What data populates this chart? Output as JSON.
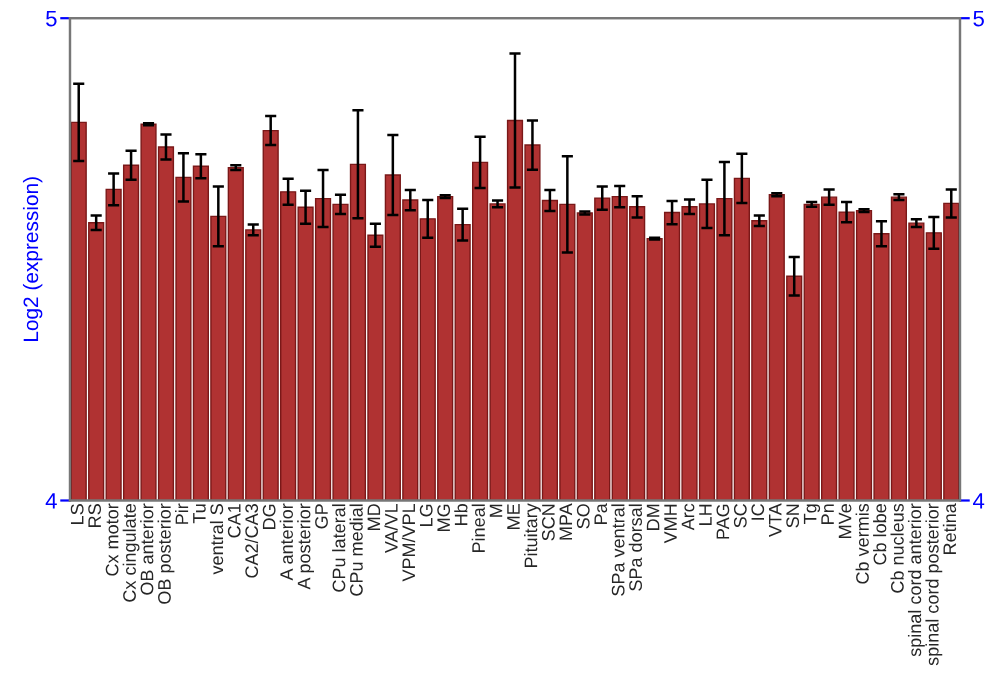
{
  "chart_data": {
    "type": "bar",
    "ylabel": "Log2 (expression)",
    "categories": [
      "LS",
      "RS",
      "Cx motor",
      "Cx cingulate",
      "OB anterior",
      "OB posterior",
      "Pir",
      "Tu",
      "ventral S",
      "CA1",
      "CA2/CA3",
      "DG",
      "A anterior",
      "A posterior",
      "GP",
      "CPu lateral",
      "CPu medial",
      "MD",
      "VA/VL",
      "VPM/VPL",
      "LG",
      "MG",
      "Hb",
      "Pineal",
      "M",
      "ME",
      "Pituitary",
      "SCN",
      "MPA",
      "SO",
      "Pa",
      "SPa ventral",
      "SPa dorsal",
      "DM",
      "VMH",
      "Arc",
      "LH",
      "PAG",
      "SC",
      "IC",
      "VTA",
      "SN",
      "Tg",
      "Pn",
      "MVe",
      "Cb vermis",
      "Cb lobe",
      "Cb nucleus",
      "spinal cord anterior",
      "spinal cord posterior",
      "Retina"
    ],
    "values": [
      4.784,
      4.576,
      4.645,
      4.695,
      4.78,
      4.733,
      4.67,
      4.693,
      4.589,
      4.69,
      4.561,
      4.767,
      4.64,
      4.608,
      4.626,
      4.614,
      4.697,
      4.55,
      4.675,
      4.623,
      4.584,
      4.63,
      4.572,
      4.701,
      4.615,
      4.788,
      4.737,
      4.622,
      4.614,
      4.596,
      4.627,
      4.63,
      4.609,
      4.543,
      4.597,
      4.609,
      4.615,
      4.626,
      4.668,
      4.58,
      4.634,
      4.465,
      4.614,
      4.629,
      4.598,
      4.601,
      4.553,
      4.629,
      4.575,
      4.555,
      4.616
    ],
    "errors": [
      0.08,
      0.015,
      0.033,
      0.03,
      0.002,
      0.026,
      0.05,
      0.025,
      0.062,
      0.005,
      0.011,
      0.03,
      0.027,
      0.034,
      0.059,
      0.02,
      0.112,
      0.024,
      0.083,
      0.021,
      0.039,
      0.003,
      0.033,
      0.053,
      0.007,
      0.139,
      0.051,
      0.022,
      0.1,
      0.003,
      0.024,
      0.022,
      0.022,
      0.002,
      0.024,
      0.015,
      0.05,
      0.076,
      0.051,
      0.011,
      0.003,
      0.04,
      0.005,
      0.016,
      0.021,
      0.003,
      0.026,
      0.006,
      0.008,
      0.033,
      0.029
    ],
    "color": "#b03232",
    "ylim": [
      4,
      5
    ],
    "yticks": [
      4,
      5
    ],
    "y2lim": [
      4,
      5
    ],
    "y2ticks": [
      4,
      5
    ],
    "grid": false,
    "legend": false
  }
}
